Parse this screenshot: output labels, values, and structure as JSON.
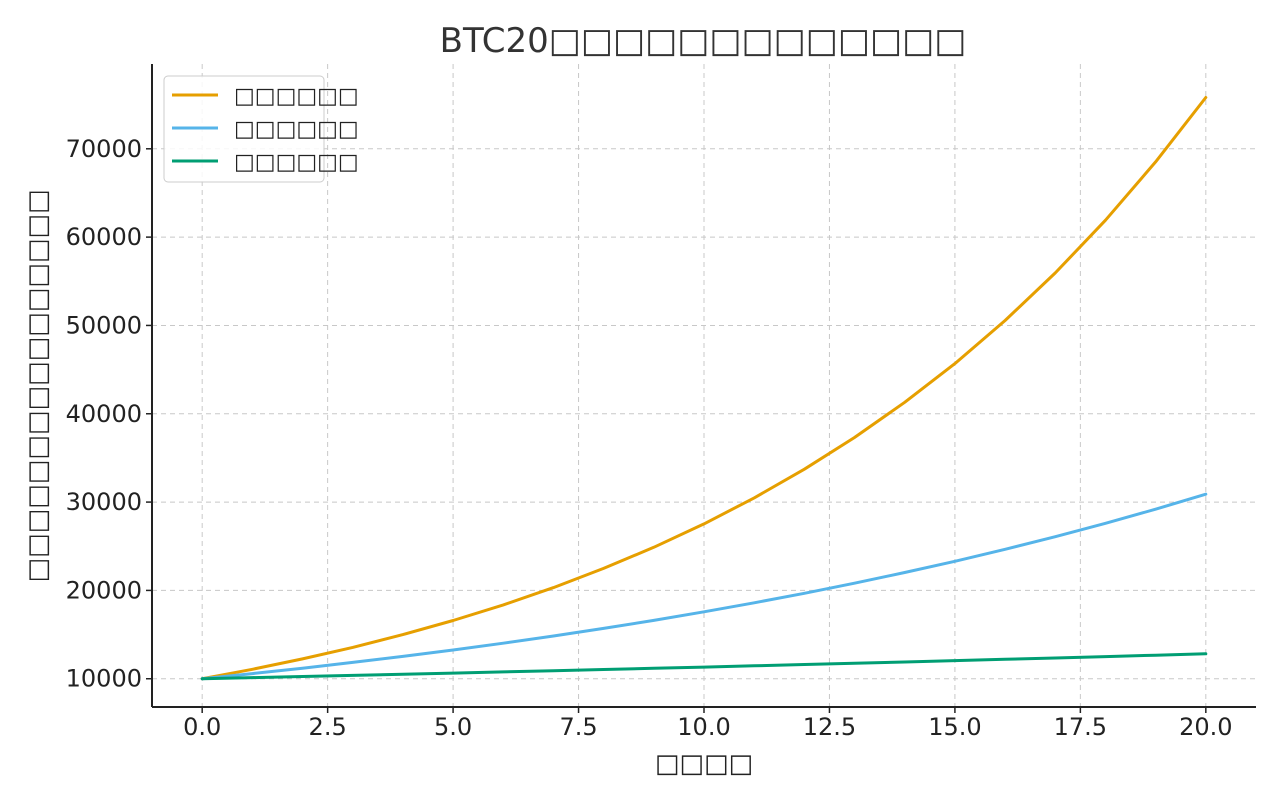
{
  "chart_data": {
    "type": "line",
    "title": "BTC20□□□□□□□□□□□□□",
    "xlabel": "□□□□",
    "ylabel": "□□□□□□□□□□□□□□□□",
    "xlim": [
      -1,
      21
    ],
    "ylim": [
      6800,
      79600
    ],
    "xticks": [
      0,
      2.5,
      5,
      7.5,
      10,
      12.5,
      15,
      17.5,
      20
    ],
    "xtick_labels": [
      "0.0",
      "2.5",
      "5.0",
      "7.5",
      "10.0",
      "12.5",
      "15.0",
      "17.5",
      "20.0"
    ],
    "yticks": [
      10000,
      20000,
      30000,
      40000,
      50000,
      60000,
      70000
    ],
    "ytick_labels": [
      "10000",
      "20000",
      "30000",
      "40000",
      "50000",
      "60000",
      "70000"
    ],
    "grid": true,
    "legend_position": "top-left",
    "x": [
      0,
      1,
      2,
      3,
      4,
      5,
      6,
      7,
      8,
      9,
      10,
      11,
      12,
      13,
      14,
      15,
      16,
      17,
      18,
      19,
      20
    ],
    "series": [
      {
        "name": "□□□□□□",
        "color": "#E69F00",
        "values": [
          10000,
          11066,
          12244,
          13549,
          14995,
          16592,
          18362,
          20317,
          22488,
          24880,
          27536,
          30470,
          33721,
          37316,
          41297,
          45685,
          50564,
          55952,
          61920,
          68511,
          75809
        ]
      },
      {
        "name": "□□□□□□",
        "color": "#56B4E9",
        "values": [
          10000,
          10580,
          11195,
          11844,
          12530,
          13256,
          14026,
          14837,
          15700,
          16610,
          17575,
          18593,
          19675,
          20813,
          22024,
          23299,
          24653,
          26081,
          27595,
          29194,
          30888
        ]
      },
      {
        "name": "□□□□□□",
        "color": "#009E73",
        "values": [
          10000,
          10125,
          10252,
          10380,
          10510,
          10641,
          10774,
          10909,
          11045,
          11183,
          11323,
          11465,
          11608,
          11753,
          11900,
          12049,
          12199,
          12352,
          12506,
          12663,
          12821
        ]
      }
    ]
  }
}
